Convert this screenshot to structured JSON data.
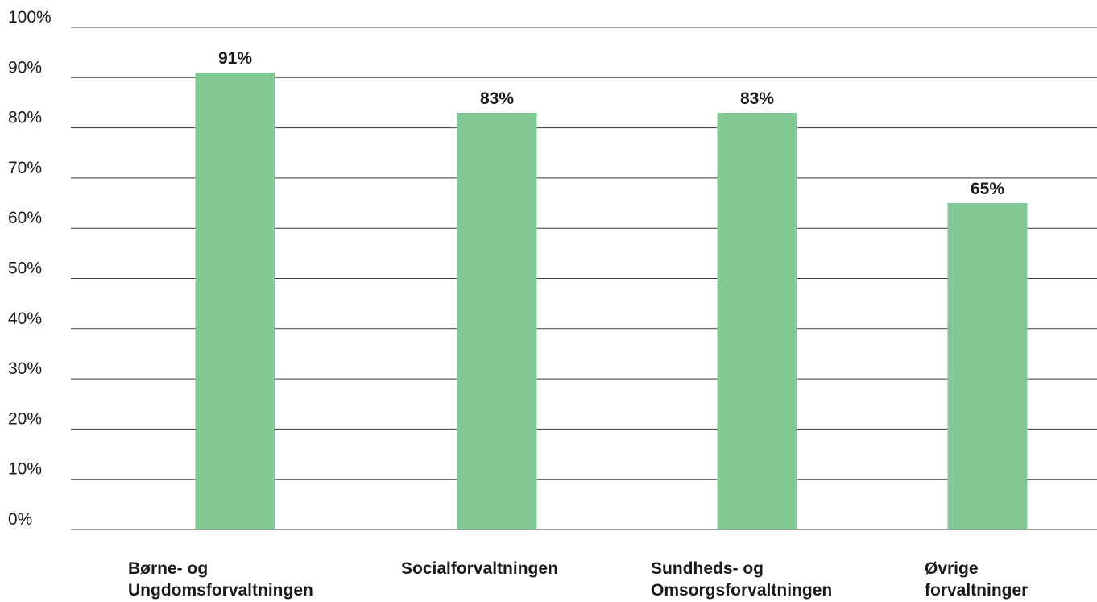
{
  "chart_data": {
    "type": "bar",
    "title": "",
    "xlabel": "",
    "ylabel": "",
    "ylim": [
      0,
      100
    ],
    "y_ticks": [
      0,
      10,
      20,
      30,
      40,
      50,
      60,
      70,
      80,
      90,
      100
    ],
    "y_tick_suffix": "%",
    "grid": true,
    "categories": [
      [
        "Børne- og",
        "Ungdomsforvaltningen"
      ],
      [
        "Socialforvaltningen"
      ],
      [
        "Sundheds- og",
        "Omsorgsforvaltningen"
      ],
      [
        "Øvrige",
        "forvaltninger"
      ]
    ],
    "values": [
      91,
      83,
      83,
      65
    ],
    "data_labels": [
      "91%",
      "83%",
      "83%",
      "65%"
    ],
    "bar_color": "#82c995"
  }
}
